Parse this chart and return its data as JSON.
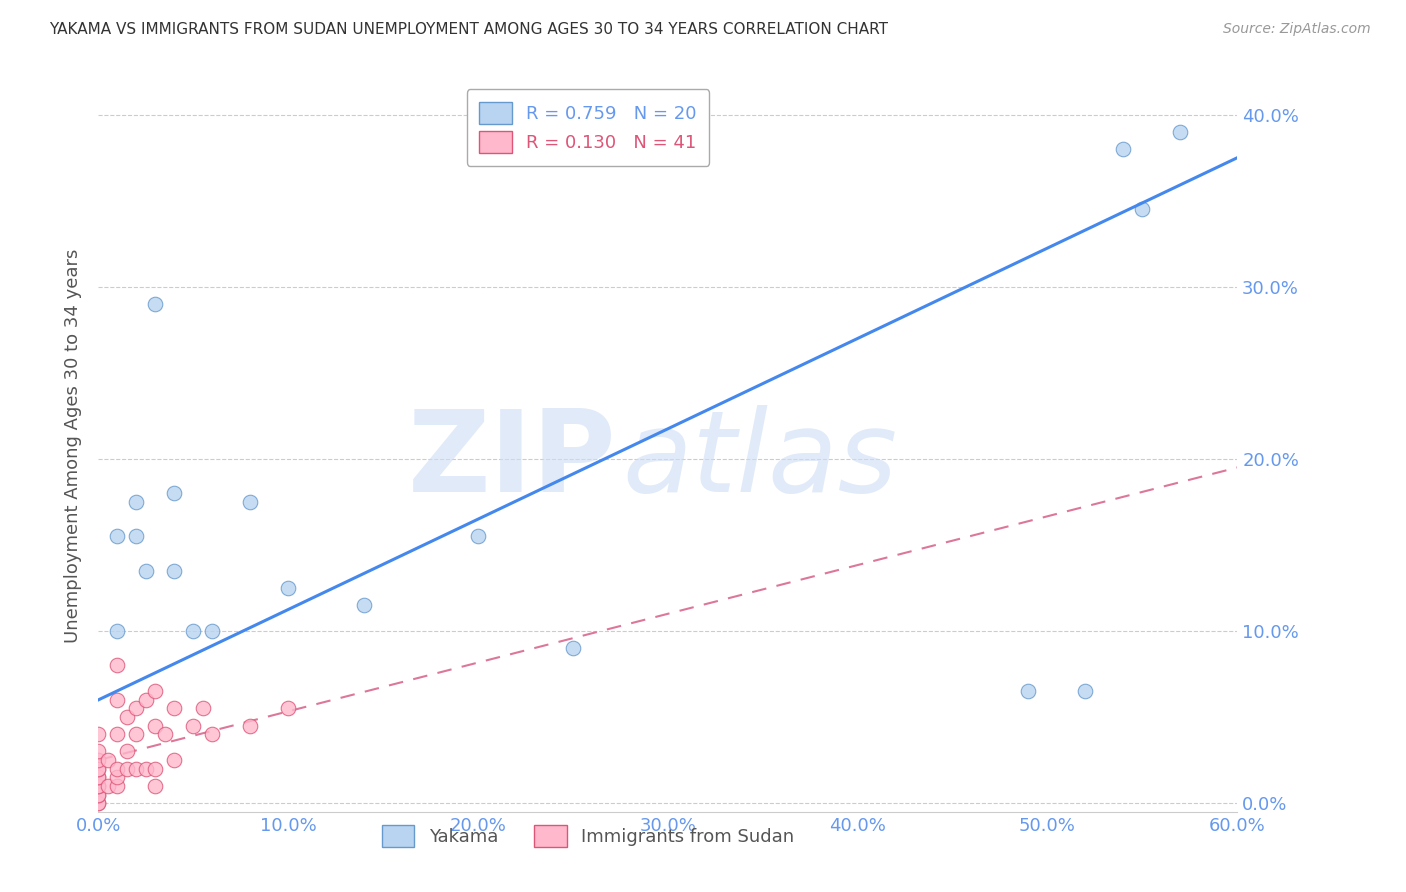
{
  "title": "YAKAMA VS IMMIGRANTS FROM SUDAN UNEMPLOYMENT AMONG AGES 30 TO 34 YEARS CORRELATION CHART",
  "source": "Source: ZipAtlas.com",
  "ylabel": "Unemployment Among Ages 30 to 34 years",
  "watermark_zip": "ZIP",
  "watermark_atlas": "atlas",
  "xmin": 0.0,
  "xmax": 0.6,
  "ymin": -0.005,
  "ymax": 0.42,
  "yticks": [
    0.0,
    0.1,
    0.2,
    0.3,
    0.4
  ],
  "xticks": [
    0.0,
    0.1,
    0.2,
    0.3,
    0.4,
    0.5,
    0.6
  ],
  "series": [
    {
      "name": "Yakama",
      "R": 0.759,
      "N": 20,
      "color": "#b8d4f0",
      "edge_color": "#6699cc",
      "x": [
        0.01,
        0.01,
        0.02,
        0.02,
        0.025,
        0.03,
        0.04,
        0.04,
        0.05,
        0.06,
        0.08,
        0.1,
        0.14,
        0.2,
        0.25,
        0.49,
        0.52,
        0.54,
        0.55,
        0.57
      ],
      "y": [
        0.1,
        0.155,
        0.155,
        0.175,
        0.135,
        0.29,
        0.18,
        0.135,
        0.1,
        0.1,
        0.175,
        0.125,
        0.115,
        0.155,
        0.09,
        0.065,
        0.065,
        0.38,
        0.345,
        0.39
      ],
      "trend_color": "#4488ee",
      "trend_dash": "solid",
      "trend_x": [
        0.0,
        0.6
      ],
      "trend_y_start": 0.06,
      "trend_y_end": 0.375
    },
    {
      "name": "Immigrants from Sudan",
      "R": 0.13,
      "N": 41,
      "color": "#ffb8cc",
      "edge_color": "#dd5577",
      "x": [
        0.0,
        0.0,
        0.0,
        0.0,
        0.0,
        0.0,
        0.0,
        0.0,
        0.0,
        0.0,
        0.0,
        0.0,
        0.0,
        0.005,
        0.005,
        0.01,
        0.01,
        0.01,
        0.01,
        0.01,
        0.01,
        0.015,
        0.015,
        0.015,
        0.02,
        0.02,
        0.02,
        0.025,
        0.025,
        0.03,
        0.03,
        0.03,
        0.03,
        0.035,
        0.04,
        0.04,
        0.05,
        0.055,
        0.06,
        0.08,
        0.1
      ],
      "y": [
        0.0,
        0.0,
        0.005,
        0.005,
        0.01,
        0.01,
        0.015,
        0.015,
        0.02,
        0.02,
        0.025,
        0.03,
        0.04,
        0.01,
        0.025,
        0.01,
        0.015,
        0.02,
        0.04,
        0.06,
        0.08,
        0.02,
        0.03,
        0.05,
        0.02,
        0.04,
        0.055,
        0.02,
        0.06,
        0.01,
        0.02,
        0.045,
        0.065,
        0.04,
        0.025,
        0.055,
        0.045,
        0.055,
        0.04,
        0.045,
        0.055
      ],
      "trend_color": "#dd7799",
      "trend_dash": "dashed",
      "trend_x": [
        0.0,
        0.6
      ],
      "trend_y_start": 0.025,
      "trend_y_end": 0.195
    }
  ],
  "title_color": "#333333",
  "axis_color": "#6699ee",
  "grid_color": "#cccccc",
  "background_color": "#ffffff"
}
